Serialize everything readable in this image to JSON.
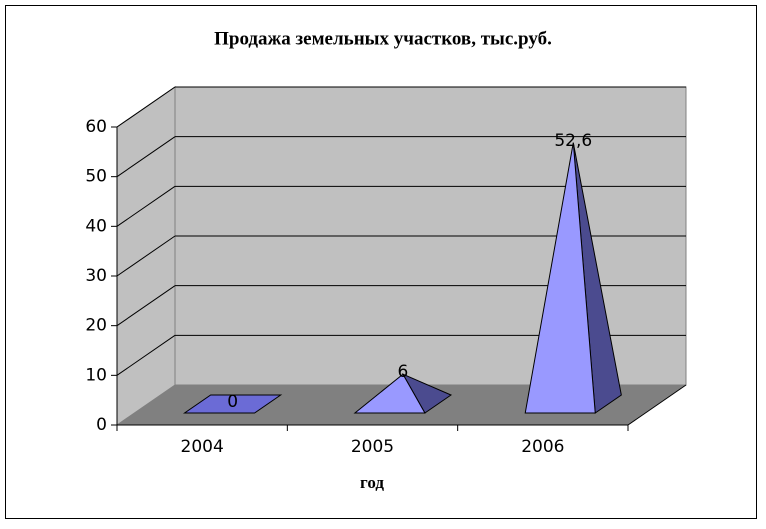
{
  "chart_data": {
    "type": "pyramid",
    "title": "Продажа земельных участков, тыс.руб.",
    "x_label": "год",
    "categories": [
      "2004",
      "2005",
      "2006"
    ],
    "values": [
      0,
      6,
      52.6
    ],
    "value_labels": [
      "0",
      "6",
      "52,6"
    ],
    "color": "#9999ff",
    "side_color": "#4b4b8f",
    "ylim": [
      0,
      60
    ],
    "yticks": [
      0,
      10,
      20,
      30,
      40,
      50,
      60
    ],
    "grid": true
  }
}
